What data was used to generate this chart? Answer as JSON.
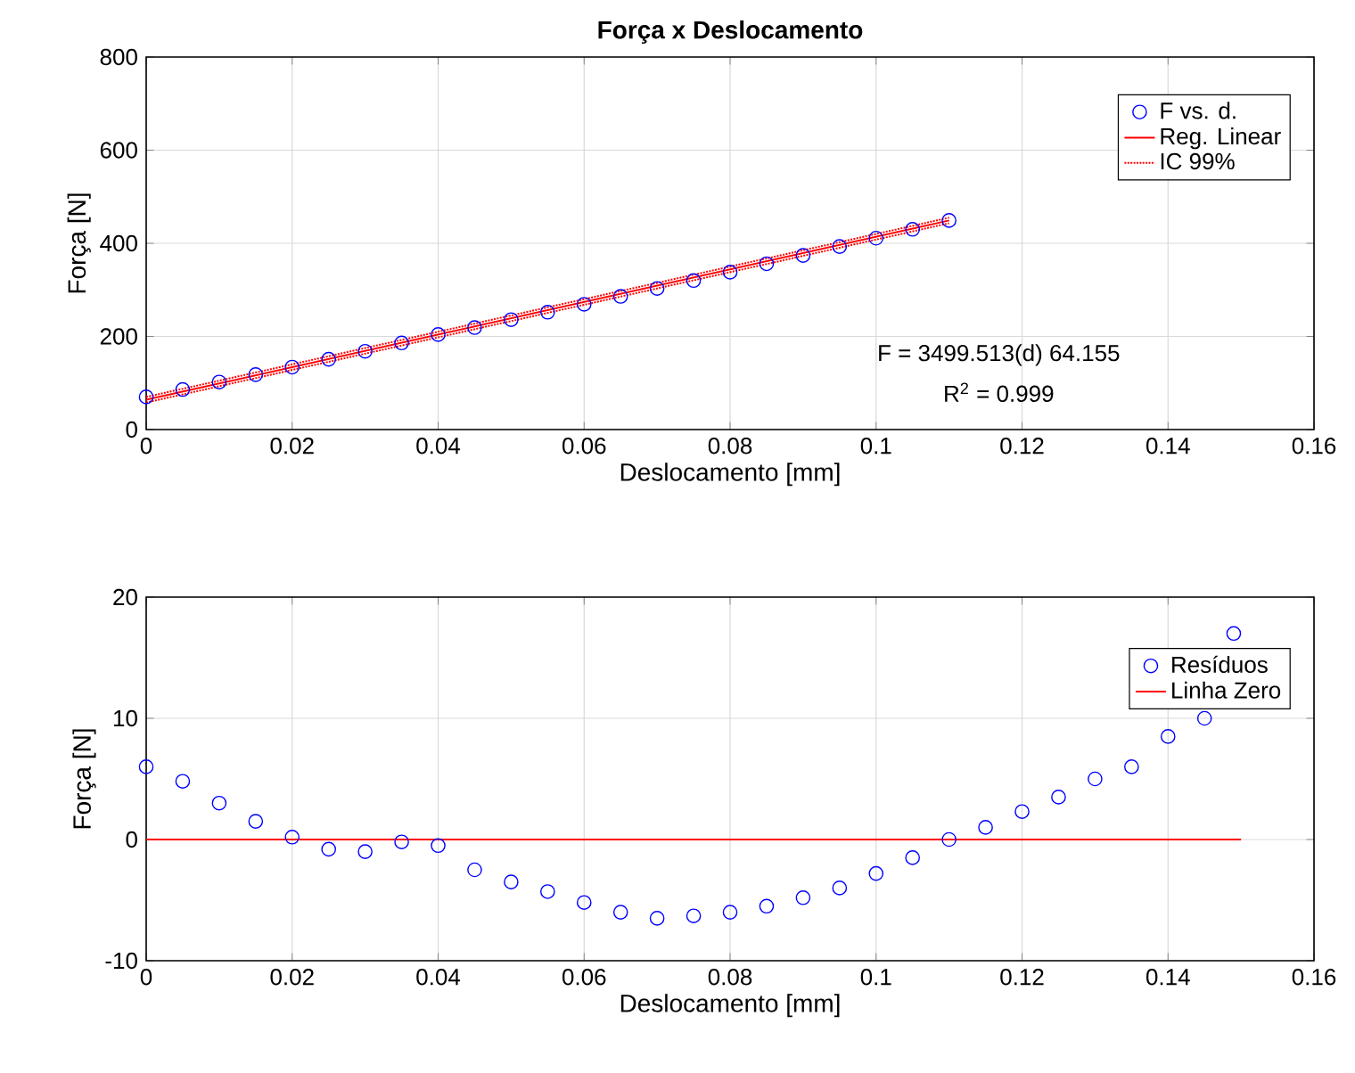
{
  "chart_data": [
    {
      "type": "scatter",
      "title": "Força x Deslocamento",
      "xlabel": "Deslocamento [mm]",
      "ylabel": "Força [N]",
      "xlim": [
        0,
        0.16
      ],
      "xticks": [
        0,
        0.02,
        0.04,
        0.06,
        0.08,
        0.1,
        0.12,
        0.14,
        0.16
      ],
      "ylim": [
        0,
        800
      ],
      "yticks": [
        0,
        200,
        400,
        600,
        800
      ],
      "grid": true,
      "legend": "top right",
      "annotations": [
        "F = 3499.513(d) 64.155",
        "R$^{2}$ = 0.999"
      ],
      "series": [
        {
          "name": "F vs. d.",
          "marker": "circle",
          "color": "#0000ff",
          "x": [
            0,
            0.005,
            0.01,
            0.015,
            0.02,
            0.025,
            0.03,
            0.035,
            0.04,
            0.045,
            0.05,
            0.055,
            0.06,
            0.065,
            0.07,
            0.075,
            0.08,
            0.085,
            0.09,
            0.095,
            0.1,
            0.105,
            0.11
          ],
          "values": [
            70,
            86,
            102,
            118,
            134,
            151,
            168,
            186,
            204,
            219,
            236,
            252,
            269,
            286,
            303,
            320,
            338,
            356,
            374,
            393,
            411,
            430,
            449
          ]
        },
        {
          "name": "Reg. Linear",
          "type": "line",
          "line_style": "solid",
          "color": "#ff0000",
          "x": [
            0,
            0.11
          ],
          "values": [
            64,
            449
          ]
        },
        {
          "name": "IC 99%",
          "type": "line",
          "line_style": "dotted",
          "color": "#ff0000",
          "x": [
            0,
            0.11
          ],
          "values": [
            70,
            455
          ]
        },
        {
          "type": "line",
          "line_style": "dotted",
          "color": "#ff0000",
          "x": [
            0,
            0.11
          ],
          "values": [
            58,
            443
          ]
        }
      ]
    },
    {
      "type": "scatter",
      "xlabel": "Deslocamento [mm]",
      "ylabel": "Força [N]",
      "xlim": [
        0,
        0.16
      ],
      "xticks": [
        0,
        0.02,
        0.04,
        0.06,
        0.08,
        0.1,
        0.12,
        0.14,
        0.16
      ],
      "ylim": [
        -10,
        20
      ],
      "yticks": [
        -10,
        0,
        10,
        20
      ],
      "grid": true,
      "legend": "top right",
      "series": [
        {
          "name": "Resíduos",
          "marker": "circle",
          "color": "#0000ff",
          "x": [
            0,
            0.005,
            0.01,
            0.015,
            0.02,
            0.025,
            0.03,
            0.035,
            0.04,
            0.045,
            0.05,
            0.055,
            0.06,
            0.065,
            0.07,
            0.075,
            0.08,
            0.085,
            0.09,
            0.095,
            0.1,
            0.105,
            0.11,
            0.115,
            0.12,
            0.125,
            0.13,
            0.135,
            0.14,
            0.145,
            0.149
          ],
          "values": [
            6,
            4.8,
            3,
            1.5,
            0.2,
            -0.8,
            -1,
            -0.2,
            -0.5,
            -2.5,
            -3.5,
            -4.3,
            -5.2,
            -6,
            -6.5,
            -6.3,
            -6,
            -5.5,
            -4.8,
            -4,
            -2.8,
            -1.5,
            0,
            1,
            2.3,
            3.5,
            5,
            6,
            8.5,
            10,
            17
          ]
        },
        {
          "name": "Linha Zero",
          "type": "line",
          "line_style": "solid",
          "color": "#ff0000",
          "x": [
            0,
            0.15
          ],
          "values": [
            0,
            0
          ]
        }
      ]
    }
  ]
}
